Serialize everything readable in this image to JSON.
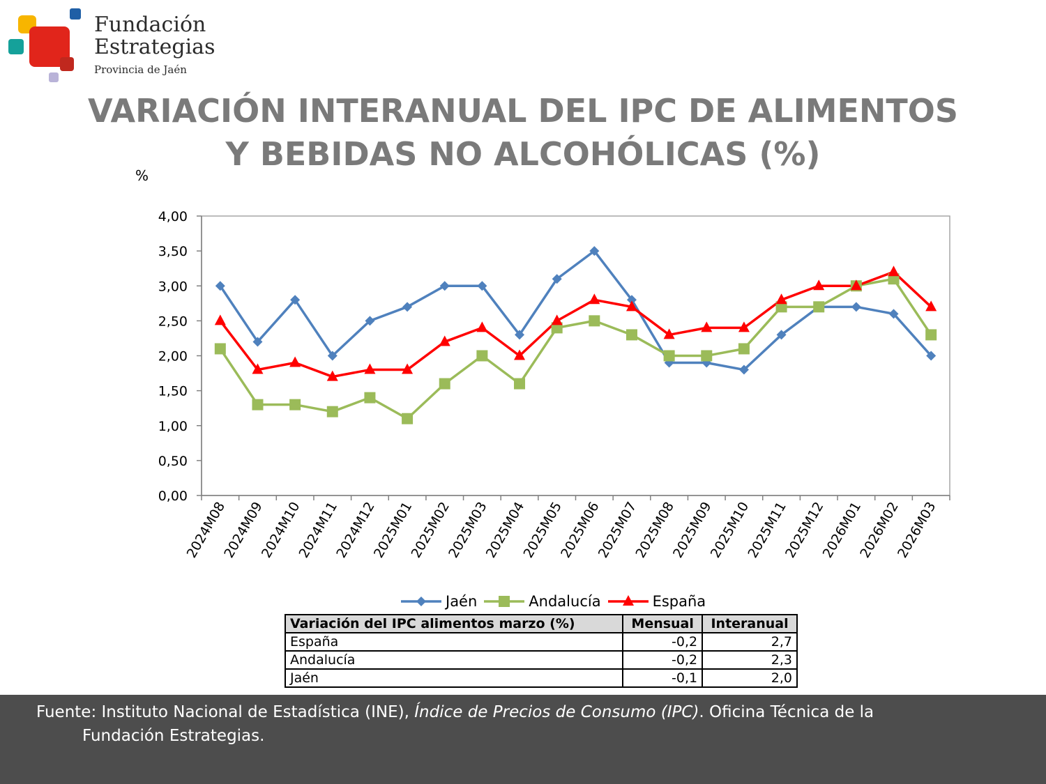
{
  "logo": {
    "line1": "Fundación",
    "line2": "Estrategias",
    "line3": "Provincia de Jaén"
  },
  "title": {
    "line1": "VARIACIÓN INTERANUAL DEL IPC DE ALIMENTOS",
    "line2": "Y BEBIDAS NO ALCOHÓLICAS (%)"
  },
  "chart_data": {
    "type": "line",
    "ylabel": "%",
    "ylim": [
      0,
      4
    ],
    "yticks": [
      "0,00",
      "0,50",
      "1,00",
      "1,50",
      "2,00",
      "2,50",
      "3,00",
      "3,50",
      "4,00"
    ],
    "categories": [
      "2024M08",
      "2024M09",
      "2024M10",
      "2024M11",
      "2024M12",
      "2025M01",
      "2025M02",
      "2025M03",
      "2025M04",
      "2025M05",
      "2025M06",
      "2025M07",
      "2025M08",
      "2025M09",
      "2025M10",
      "2025M11",
      "2025M12",
      "2026M01",
      "2026M02",
      "2026M03"
    ],
    "legend_position": "bottom",
    "grid": false,
    "series": [
      {
        "name": "Jaén",
        "color": "#4f81bd",
        "marker": "diamond",
        "values": [
          3.0,
          2.2,
          2.8,
          2.0,
          2.5,
          2.7,
          3.0,
          3.0,
          2.3,
          3.1,
          3.5,
          2.8,
          1.9,
          1.9,
          1.8,
          2.3,
          2.7,
          2.7,
          2.6,
          2.0
        ]
      },
      {
        "name": "Andalucía",
        "color": "#9bbb59",
        "marker": "square",
        "values": [
          2.1,
          1.3,
          1.3,
          1.2,
          1.4,
          1.1,
          1.6,
          2.0,
          1.6,
          2.4,
          2.5,
          2.3,
          2.0,
          2.0,
          2.1,
          2.7,
          2.7,
          3.0,
          3.1,
          2.3
        ]
      },
      {
        "name": "España",
        "color": "#ff0000",
        "marker": "triangle",
        "values": [
          2.5,
          1.8,
          1.9,
          1.7,
          1.8,
          1.8,
          2.2,
          2.4,
          2.0,
          2.5,
          2.8,
          2.7,
          2.3,
          2.4,
          2.4,
          2.8,
          3.0,
          3.0,
          3.2,
          2.7
        ]
      }
    ]
  },
  "table": {
    "headers": [
      "Variación del IPC alimentos marzo (%)",
      "Mensual",
      "Interanual"
    ],
    "rows": [
      [
        "España",
        "-0,2",
        "2,7"
      ],
      [
        "Andalucía",
        "-0,2",
        "2,3"
      ],
      [
        "Jaén",
        "-0,1",
        "2,0"
      ]
    ]
  },
  "footer": {
    "prefix": "Fuente: Instituto Nacional de Estadística (INE), ",
    "italic": "Índice de Precios de Consumo (IPC)",
    "suffix": ". Oficina Técnica de la",
    "line2": "Fundación Estrategias."
  }
}
